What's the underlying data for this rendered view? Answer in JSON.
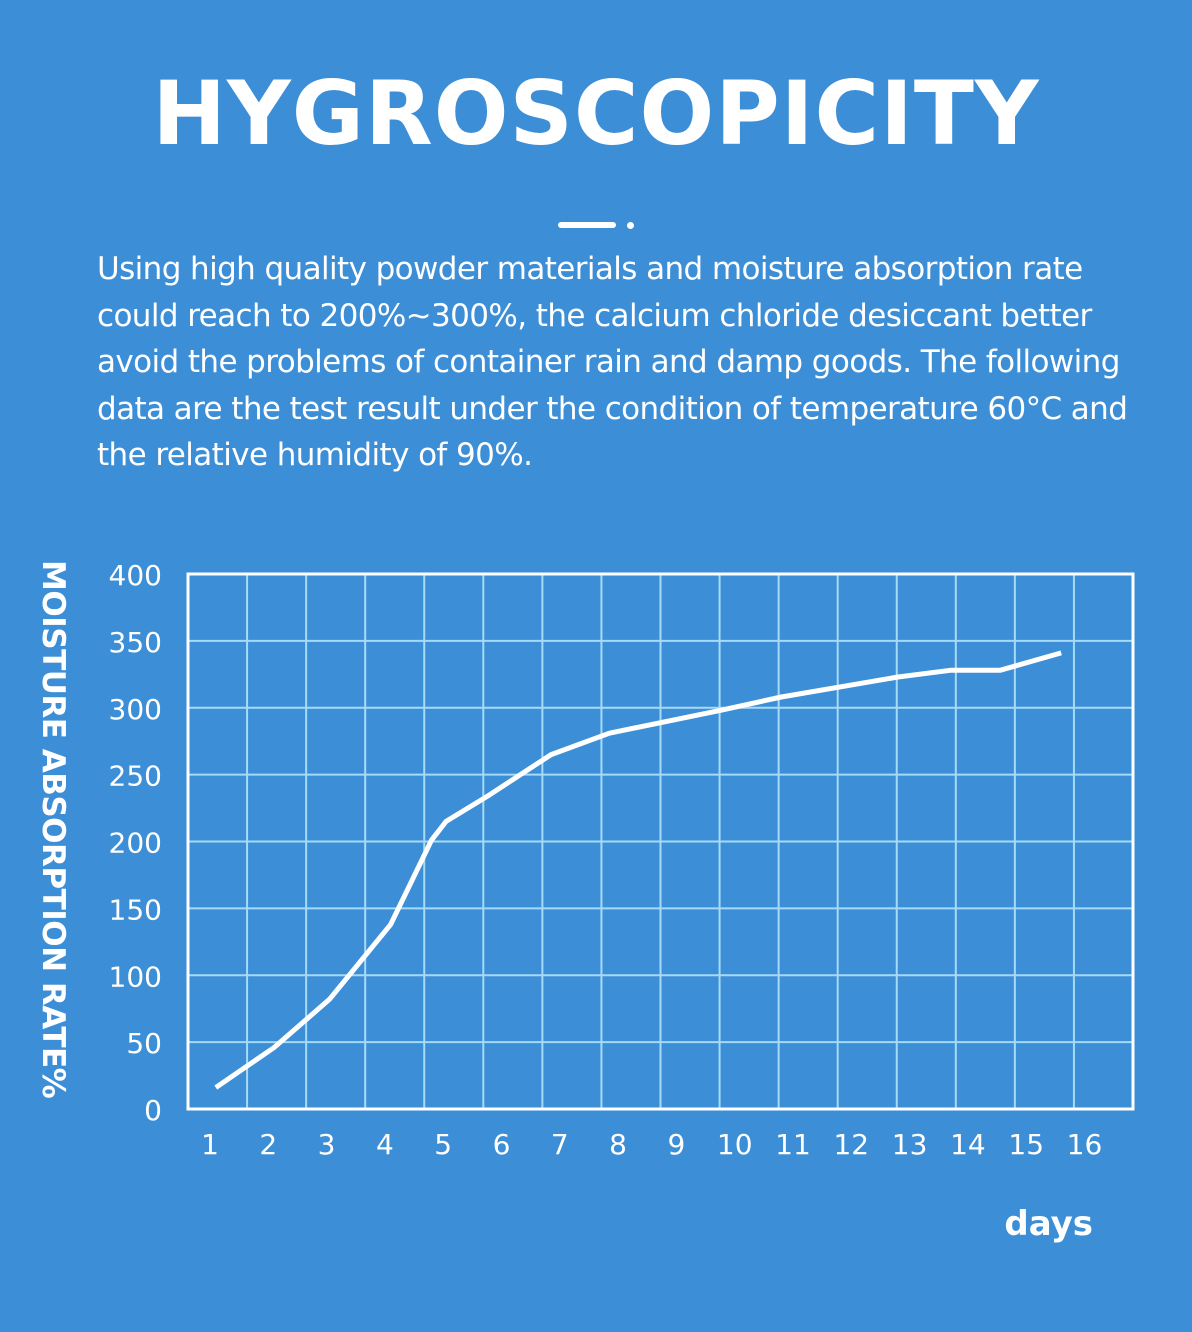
{
  "title": "HYGROSCOPICITY",
  "description": "Using high quality powder materials and moisture absorption rate could reach to 200%~300%, the calcium chloride desiccant better avoid the problems of container rain and damp goods. The following data are the test result under the condition of temperature 60°C and the relative humidity of 90%.",
  "colors": {
    "background": "#3c8ed6",
    "grid": "#a6daf6",
    "line": "#ffffff"
  },
  "chart_data": {
    "type": "line",
    "title": "",
    "xlabel": "days",
    "ylabel": "MOISTURE ABSORPTION RATE%",
    "xlim": [
      1,
      16
    ],
    "ylim": [
      0,
      400
    ],
    "grid": true,
    "x_ticks": [
      "1",
      "2",
      "3",
      "4",
      "5",
      "6",
      "7",
      "8",
      "9",
      "10",
      "11",
      "12",
      "13",
      "14",
      "15",
      "16"
    ],
    "y_ticks": [
      "0",
      "50",
      "100",
      "150",
      "200",
      "250",
      "300",
      "350",
      "400"
    ],
    "series": [
      {
        "name": "moisture absorption",
        "x": [
          1.1,
          2.1,
          3.05,
          4.1,
          4.8,
          5.05,
          5.8,
          6.85,
          7.85,
          9.75,
          10.8,
          12.8,
          13.7,
          14.55,
          15.6
        ],
        "y": [
          16,
          46,
          82,
          138,
          201,
          215,
          235,
          265,
          281,
          298,
          308,
          323,
          328,
          328,
          341
        ]
      }
    ]
  }
}
